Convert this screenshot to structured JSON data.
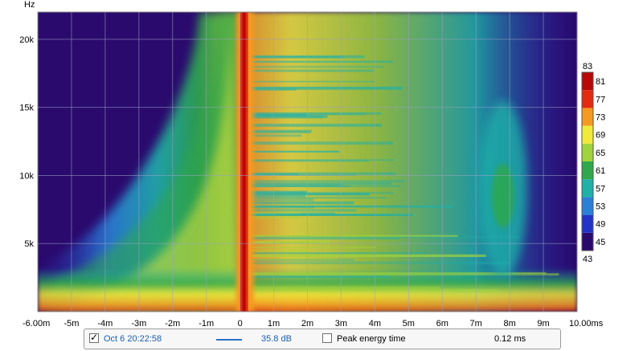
{
  "chart_data": {
    "type": "heatmap",
    "title": "",
    "x_axis": {
      "unit": "ms",
      "range": [
        -6.0,
        10.0
      ],
      "ticks": [
        {
          "value": -6,
          "label": "-6.00m"
        },
        {
          "value": -5,
          "label": "-5m"
        },
        {
          "value": -4,
          "label": "-4m"
        },
        {
          "value": -3,
          "label": "-3m"
        },
        {
          "value": -2,
          "label": "-2m"
        },
        {
          "value": -1,
          "label": "-1m"
        },
        {
          "value": 0,
          "label": "0"
        },
        {
          "value": 1,
          "label": "1m"
        },
        {
          "value": 2,
          "label": "2m"
        },
        {
          "value": 3,
          "label": "3m"
        },
        {
          "value": 4,
          "label": "4m"
        },
        {
          "value": 5,
          "label": "5m"
        },
        {
          "value": 6,
          "label": "6m"
        },
        {
          "value": 7,
          "label": "7m"
        },
        {
          "value": 8,
          "label": "8m"
        },
        {
          "value": 9,
          "label": "9m"
        },
        {
          "value": 10,
          "label": "10.00ms"
        }
      ]
    },
    "y_axis": {
      "unit_label": "Hz",
      "range": [
        0,
        22000
      ],
      "ticks": [
        {
          "value": 5000,
          "label": "5k"
        },
        {
          "value": 10000,
          "label": "10k"
        },
        {
          "value": 15000,
          "label": "15k"
        },
        {
          "value": 20000,
          "label": "20k"
        }
      ]
    },
    "colorbar": {
      "min": 43,
      "max": 83,
      "min_label": "43",
      "max_label": "83",
      "ticks": [
        {
          "value": 81,
          "label": "81"
        },
        {
          "value": 77,
          "label": "77"
        },
        {
          "value": 73,
          "label": "73"
        },
        {
          "value": 69,
          "label": "69"
        },
        {
          "value": 65,
          "label": "65"
        },
        {
          "value": 61,
          "label": "61"
        },
        {
          "value": 57,
          "label": "57"
        },
        {
          "value": 53,
          "label": "53"
        },
        {
          "value": 49,
          "label": "49"
        },
        {
          "value": 45,
          "label": "45"
        }
      ],
      "colors": [
        "#2b0a6e",
        "#2233c8",
        "#2a7fd6",
        "#1fb0a8",
        "#2ea84a",
        "#9fd43a",
        "#f2ea3a",
        "#f59a20",
        "#e42a10",
        "#b80808"
      ]
    },
    "features": {
      "impulse_peak_time_ms": 0.12,
      "background_level_db": 44
    },
    "grid": true
  },
  "status_bar": {
    "measurement_checked": true,
    "measurement_name": "Oct 6 20:22:58",
    "range_db": "35.8 dB",
    "peak_energy_time_checked": false,
    "peak_energy_time_label": "Peak energy time",
    "peak_energy_time_value": "0.12 ms"
  }
}
